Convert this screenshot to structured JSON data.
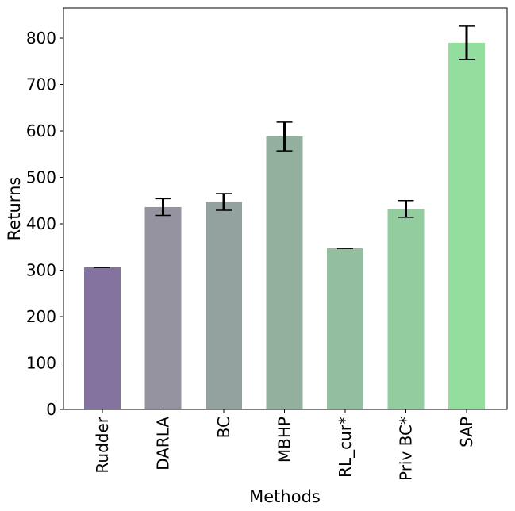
{
  "chart_data": {
    "type": "bar",
    "title": "",
    "xlabel": "Methods",
    "ylabel": "Returns",
    "ylim": [
      0,
      865
    ],
    "yticks": [
      0,
      100,
      200,
      300,
      400,
      500,
      600,
      700,
      800
    ],
    "ytick_labels": [
      "0",
      "100",
      "200",
      "300",
      "400",
      "500",
      "600",
      "700",
      "800"
    ],
    "grid": false,
    "categories": [
      "Rudder",
      "DARLA",
      "BC",
      "MBHP",
      "RL_cur*",
      "Priv BC*",
      "SAP"
    ],
    "values": [
      306,
      436,
      447,
      588,
      347,
      432,
      790
    ],
    "errors": [
      0,
      18,
      18,
      31,
      0,
      18,
      36
    ],
    "colors": [
      "#84739f",
      "#95939f",
      "#94a29f",
      "#93b09f",
      "#93be9f",
      "#93cd9f",
      "#93de9f"
    ]
  }
}
